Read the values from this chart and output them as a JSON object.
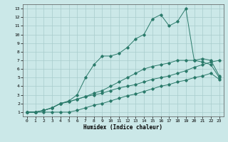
{
  "xlabel": "Humidex (Indice chaleur)",
  "bg_color": "#cbe8e8",
  "grid_color": "#a8cccc",
  "line_color": "#2a7a6a",
  "xlim": [
    -0.5,
    23.5
  ],
  "ylim": [
    0.5,
    13.5
  ],
  "xticks": [
    0,
    1,
    2,
    3,
    4,
    5,
    6,
    7,
    8,
    9,
    10,
    11,
    12,
    13,
    14,
    15,
    16,
    17,
    18,
    19,
    20,
    21,
    22,
    23
  ],
  "yticks": [
    1,
    2,
    3,
    4,
    5,
    6,
    7,
    8,
    9,
    10,
    11,
    12,
    13
  ],
  "line1_x": [
    0,
    1,
    2,
    3,
    4,
    5,
    6,
    7,
    8,
    9,
    10,
    11,
    12,
    13,
    14,
    15,
    16,
    17,
    18,
    19,
    20,
    21,
    22,
    23
  ],
  "line1_y": [
    1,
    1,
    1,
    1,
    1,
    1,
    1.2,
    1.5,
    1.8,
    2,
    2.3,
    2.6,
    2.9,
    3.1,
    3.4,
    3.7,
    4,
    4.2,
    4.5,
    4.7,
    5,
    5.2,
    5.5,
    4.8
  ],
  "line2_x": [
    0,
    1,
    2,
    3,
    4,
    5,
    6,
    7,
    8,
    9,
    10,
    11,
    12,
    13,
    14,
    15,
    16,
    17,
    18,
    19,
    20,
    21,
    22,
    23
  ],
  "line2_y": [
    1,
    1,
    1.2,
    1.5,
    2,
    2.2,
    2.5,
    2.8,
    3,
    3.2,
    3.5,
    3.8,
    4,
    4.2,
    4.5,
    4.8,
    5,
    5.2,
    5.5,
    5.8,
    6.2,
    6.5,
    6.8,
    7
  ],
  "line3_x": [
    0,
    1,
    2,
    3,
    4,
    5,
    6,
    7,
    8,
    9,
    10,
    11,
    12,
    13,
    14,
    15,
    16,
    17,
    18,
    19,
    20,
    21,
    22,
    23
  ],
  "line3_y": [
    1,
    1,
    1.2,
    1.5,
    2,
    2.2,
    2.5,
    2.8,
    3.2,
    3.5,
    4,
    4.5,
    5,
    5.5,
    6,
    6.3,
    6.5,
    6.7,
    7,
    7,
    7,
    6.8,
    6.5,
    5
  ],
  "line4_x": [
    0,
    1,
    2,
    3,
    4,
    5,
    6,
    7,
    8,
    9,
    10,
    11,
    12,
    13,
    14,
    15,
    16,
    17,
    18,
    19,
    20,
    21,
    22,
    23
  ],
  "line4_y": [
    1,
    1,
    1.2,
    1.5,
    2,
    2.3,
    3,
    5,
    6.5,
    7.5,
    7.5,
    7.8,
    8.5,
    9.5,
    10,
    11.8,
    12.3,
    11,
    11.5,
    13,
    7,
    7.2,
    7,
    5.2
  ]
}
